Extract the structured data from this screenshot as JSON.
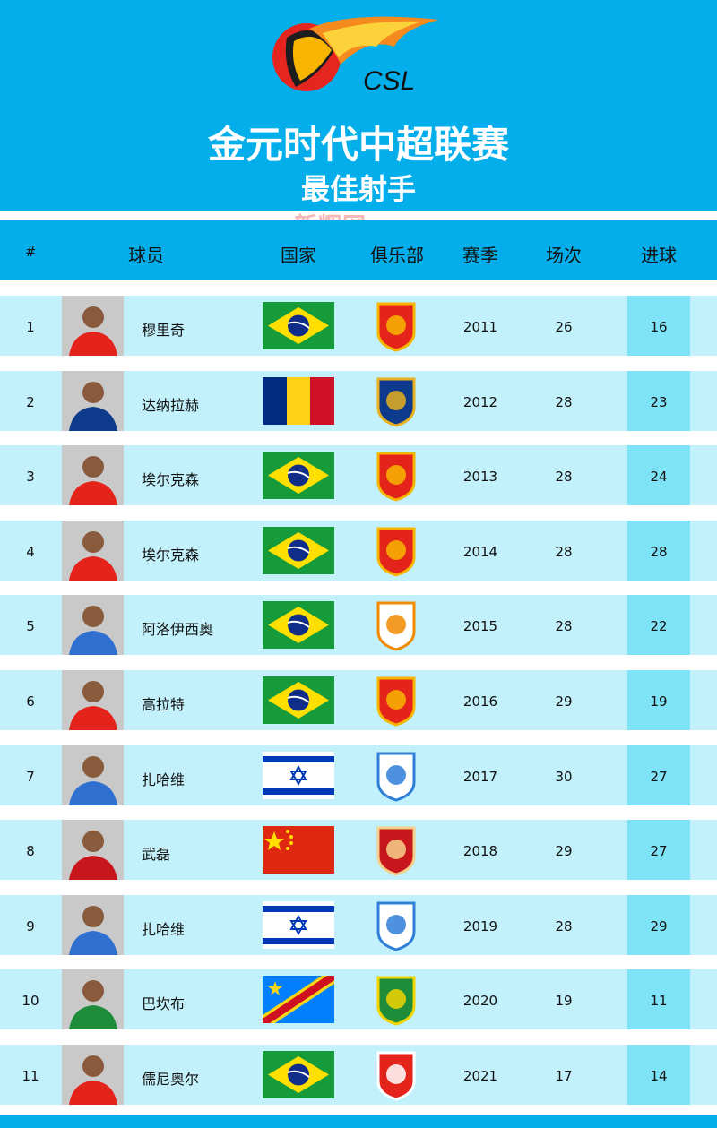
{
  "header": {
    "logo_text": "CSL",
    "title": "金元时代中超联赛",
    "subtitle": "最佳射手",
    "watermark": "新辉网"
  },
  "columns": [
    "#",
    "球员",
    "国家",
    "俱乐部",
    "赛季",
    "场次",
    "进球"
  ],
  "colors": {
    "background_blue": "#03aeea",
    "row": "#c3f1fb",
    "goals_highlight": "#7fe3f7"
  },
  "rows": [
    {
      "rank": "1",
      "player": "穆里奇",
      "country": "brazil",
      "club": "guangzhou-evergrande",
      "season": "2011",
      "apps": "26",
      "goals": "16"
    },
    {
      "rank": "2",
      "player": "达纳拉赫",
      "country": "romania",
      "club": "jiangsu",
      "season": "2012",
      "apps": "28",
      "goals": "23"
    },
    {
      "rank": "3",
      "player": "埃尔克森",
      "country": "brazil",
      "club": "guangzhou-evergrande",
      "season": "2013",
      "apps": "28",
      "goals": "24"
    },
    {
      "rank": "4",
      "player": "埃尔克森",
      "country": "brazil",
      "club": "guangzhou-evergrande",
      "season": "2014",
      "apps": "28",
      "goals": "28"
    },
    {
      "rank": "5",
      "player": "阿洛伊西奥",
      "country": "brazil",
      "club": "shandong-taishan",
      "season": "2015",
      "apps": "28",
      "goals": "22"
    },
    {
      "rank": "6",
      "player": "高拉特",
      "country": "brazil",
      "club": "guangzhou-evergrande",
      "season": "2016",
      "apps": "29",
      "goals": "19"
    },
    {
      "rank": "7",
      "player": "扎哈维",
      "country": "israel",
      "club": "guangzhou-rf",
      "season": "2017",
      "apps": "30",
      "goals": "27"
    },
    {
      "rank": "8",
      "player": "武磊",
      "country": "china",
      "club": "shanghai-sipg",
      "season": "2018",
      "apps": "29",
      "goals": "27"
    },
    {
      "rank": "9",
      "player": "扎哈维",
      "country": "israel",
      "club": "guangzhou-rf",
      "season": "2019",
      "apps": "28",
      "goals": "29"
    },
    {
      "rank": "10",
      "player": "巴坎布",
      "country": "dr-congo",
      "club": "beijing-guoan",
      "season": "2020",
      "apps": "19",
      "goals": "11"
    },
    {
      "rank": "11",
      "player": "儒尼奥尔",
      "country": "brazil",
      "club": "changchun-yatai",
      "season": "2021",
      "apps": "17",
      "goals": "14"
    }
  ]
}
